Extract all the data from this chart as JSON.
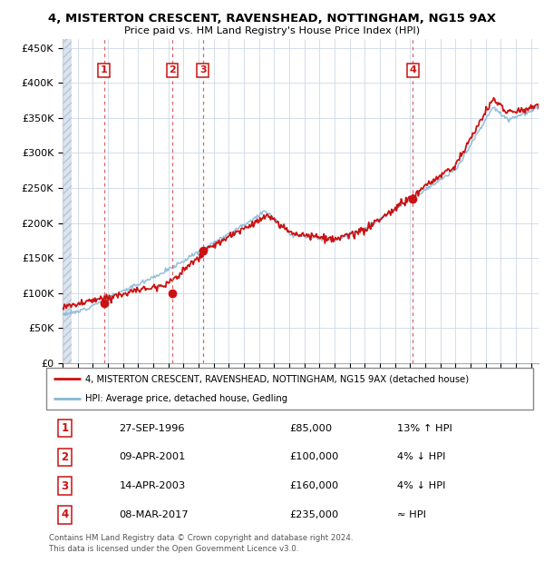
{
  "title": "4, MISTERTON CRESCENT, RAVENSHEAD, NOTTINGHAM, NG15 9AX",
  "subtitle": "Price paid vs. HM Land Registry's House Price Index (HPI)",
  "yticks": [
    0,
    50000,
    100000,
    150000,
    200000,
    250000,
    300000,
    350000,
    400000,
    450000
  ],
  "ytick_labels": [
    "£0",
    "£50K",
    "£100K",
    "£150K",
    "£200K",
    "£250K",
    "£300K",
    "£350K",
    "£400K",
    "£450K"
  ],
  "xlim_start": 1994.0,
  "xlim_end": 2025.5,
  "ylim_min": 0,
  "ylim_max": 462000,
  "sale_points": [
    {
      "year": 1996.74,
      "price": 85000,
      "label": "1"
    },
    {
      "year": 2001.27,
      "price": 100000,
      "label": "2"
    },
    {
      "year": 2003.28,
      "price": 160000,
      "label": "3"
    },
    {
      "year": 2017.18,
      "price": 235000,
      "label": "4"
    }
  ],
  "hpi_line_color": "#85b8d8",
  "price_line_color": "#cc1111",
  "sale_dot_color": "#cc1111",
  "sale_vline_color": "#cc2222",
  "sale_label_color": "#cc1111",
  "background_color": "#ffffff",
  "grid_color": "#ccd8e8",
  "legend_line1": "4, MISTERTON CRESCENT, RAVENSHEAD, NOTTINGHAM, NG15 9AX (detached house)",
  "legend_line2": "HPI: Average price, detached house, Gedling",
  "table_rows": [
    {
      "num": "1",
      "date": "27-SEP-1996",
      "price": "£85,000",
      "hpi": "13% ↑ HPI"
    },
    {
      "num": "2",
      "date": "09-APR-2001",
      "price": "£100,000",
      "hpi": "4% ↓ HPI"
    },
    {
      "num": "3",
      "date": "14-APR-2003",
      "price": "£160,000",
      "hpi": "4% ↓ HPI"
    },
    {
      "num": "4",
      "date": "08-MAR-2017",
      "price": "£235,000",
      "hpi": "≈ HPI"
    }
  ],
  "footer": "Contains HM Land Registry data © Crown copyright and database right 2024.\nThis data is licensed under the Open Government Licence v3.0."
}
